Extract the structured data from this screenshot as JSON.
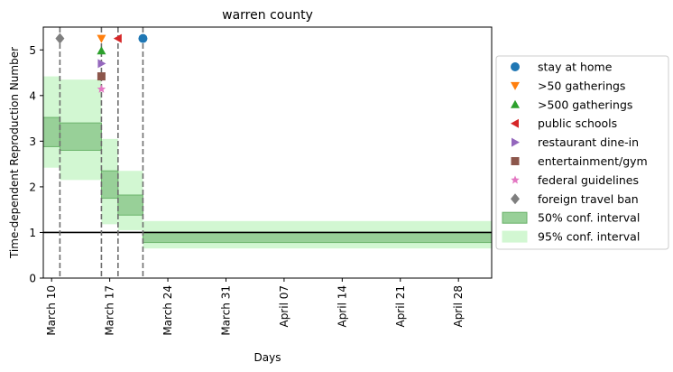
{
  "chart_data": {
    "type": "step-band",
    "title": "warren county",
    "xlabel": "Days",
    "ylabel": "Time-dependent Reproduction Number",
    "xlim": [
      "2020-03-09",
      "2020-05-02"
    ],
    "ylim": [
      0,
      5.5
    ],
    "y_ticks": [
      0,
      1,
      2,
      3,
      4,
      5
    ],
    "x_ticks": [
      {
        "date": "2020-03-10",
        "label": "March 10"
      },
      {
        "date": "2020-03-17",
        "label": "March 17"
      },
      {
        "date": "2020-03-24",
        "label": "March 24"
      },
      {
        "date": "2020-03-31",
        "label": "March 31"
      },
      {
        "date": "2020-04-07",
        "label": "April 07"
      },
      {
        "date": "2020-04-14",
        "label": "April 14"
      },
      {
        "date": "2020-04-21",
        "label": "April 21"
      },
      {
        "date": "2020-04-28",
        "label": "April 28"
      }
    ],
    "reference_line": 1,
    "ci95": [
      {
        "start": "2020-03-09",
        "end": "2020-03-11",
        "low": 2.42,
        "high": 4.42
      },
      {
        "start": "2020-03-11",
        "end": "2020-03-16",
        "low": 2.15,
        "high": 4.35
      },
      {
        "start": "2020-03-16",
        "end": "2020-03-18",
        "low": 1.18,
        "high": 3.05
      },
      {
        "start": "2020-03-18",
        "end": "2020-03-21",
        "low": 1.05,
        "high": 2.35
      },
      {
        "start": "2020-03-21",
        "end": "2020-05-02",
        "low": 0.65,
        "high": 1.25
      }
    ],
    "ci50": [
      {
        "start": "2020-03-09",
        "end": "2020-03-11",
        "low": 2.88,
        "high": 3.52
      },
      {
        "start": "2020-03-11",
        "end": "2020-03-16",
        "low": 2.8,
        "high": 3.4
      },
      {
        "start": "2020-03-16",
        "end": "2020-03-18",
        "low": 1.75,
        "high": 2.35
      },
      {
        "start": "2020-03-18",
        "end": "2020-03-21",
        "low": 1.38,
        "high": 1.82
      },
      {
        "start": "2020-03-21",
        "end": "2020-05-02",
        "low": 0.78,
        "high": 1.0
      }
    ],
    "interventions": [
      {
        "name": "stay at home",
        "date": "2020-03-21",
        "y": 5.25,
        "marker": "circle",
        "color": "#1f77b4"
      },
      {
        "name": ">50 gatherings",
        "date": "2020-03-16",
        "y": 5.25,
        "marker": "triangle-down",
        "color": "#ff7f0e"
      },
      {
        "name": ">500 gatherings",
        "date": "2020-03-16",
        "y": 4.98,
        "marker": "triangle-up",
        "color": "#2ca02c"
      },
      {
        "name": "public schools",
        "date": "2020-03-18",
        "y": 5.25,
        "marker": "triangle-left",
        "color": "#d62728"
      },
      {
        "name": "restaurant dine-in",
        "date": "2020-03-16",
        "y": 4.7,
        "marker": "triangle-right",
        "color": "#9467bd"
      },
      {
        "name": "entertainment/gym",
        "date": "2020-03-16",
        "y": 4.42,
        "marker": "square",
        "color": "#8c564b"
      },
      {
        "name": "federal guidelines",
        "date": "2020-03-16",
        "y": 4.14,
        "marker": "star",
        "color": "#e377c2"
      },
      {
        "name": "foreign travel ban",
        "date": "2020-03-11",
        "y": 5.25,
        "marker": "diamond",
        "color": "#7f7f7f"
      }
    ],
    "intervention_lines": [
      "2020-03-11",
      "2020-03-16",
      "2020-03-18",
      "2020-03-21"
    ],
    "legend_placement": "right",
    "legend_bands": [
      {
        "name": "50% conf. interval",
        "fill": "#98d098",
        "stroke": "#68b068"
      },
      {
        "name": "95% conf. interval",
        "fill": "#d2f7d2",
        "stroke": "#d2f7d2"
      }
    ],
    "grid": false
  }
}
